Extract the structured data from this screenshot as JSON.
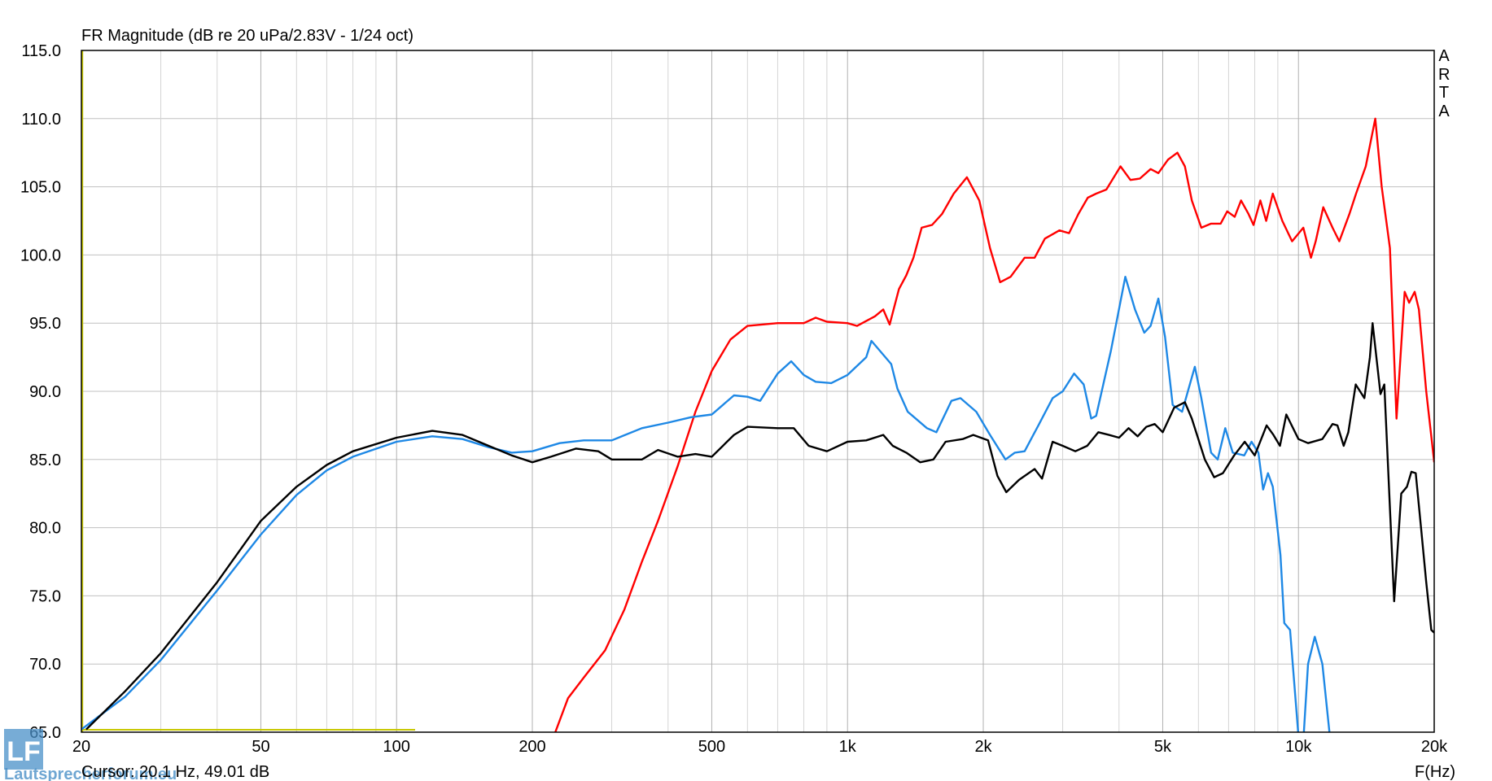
{
  "chart_data": {
    "type": "line",
    "title": "FR Magnitude (dB re 20 uPa/2.83V - 1/24 oct)",
    "brand": "ARTA",
    "xlabel": "F(Hz)",
    "cursor": {
      "label": "Cursor: 20.1 Hz, 49.01 dB",
      "x": 20.1
    },
    "watermark": {
      "logo": "LF",
      "text": "Lautsprecherforum.eu"
    },
    "xscale": "log",
    "grid": true,
    "xlim": [
      20,
      20000
    ],
    "ylim": [
      65,
      115
    ],
    "xticks": [
      20,
      50,
      100,
      200,
      500,
      {
        "value": 1000,
        "label": "1k"
      },
      {
        "value": 2000,
        "label": "2k"
      },
      {
        "value": 5000,
        "label": "5k"
      },
      {
        "value": 10000,
        "label": "10k"
      },
      {
        "value": 20000,
        "label": "20k"
      }
    ],
    "xminorticks": [
      30,
      40,
      60,
      70,
      80,
      90,
      300,
      400,
      600,
      700,
      800,
      900,
      3000,
      4000,
      6000,
      7000,
      8000,
      9000
    ],
    "yticks": [
      {
        "value": 65,
        "label": "65.0"
      },
      {
        "value": 70,
        "label": "70.0"
      },
      {
        "value": 75,
        "label": "75.0"
      },
      {
        "value": 80,
        "label": "80.0"
      },
      {
        "value": 85,
        "label": "85.0"
      },
      {
        "value": 90,
        "label": "90.0"
      },
      {
        "value": 95,
        "label": "95.0"
      },
      {
        "value": 100,
        "label": "100.0"
      },
      {
        "value": 105,
        "label": "105.0"
      },
      {
        "value": 110,
        "label": "110.0"
      },
      {
        "value": 115,
        "label": "115.0"
      }
    ],
    "series": [
      {
        "color": "#ff0000",
        "x": [
          222,
          240,
          260,
          290,
          320,
          350,
          380,
          420,
          460,
          500,
          550,
          600,
          700,
          800,
          850,
          900,
          1000,
          1050,
          1150,
          1200,
          1240,
          1300,
          1350,
          1400,
          1460,
          1540,
          1620,
          1720,
          1840,
          1960,
          2070,
          2180,
          2300,
          2470,
          2600,
          2740,
          2950,
          3100,
          3250,
          3410,
          3560,
          3750,
          4030,
          4240,
          4450,
          4700,
          4890,
          5140,
          5390,
          5600,
          5800,
          6090,
          6400,
          6720,
          6950,
          7220,
          7460,
          7750,
          7950,
          8230,
          8480,
          8770,
          9210,
          9680,
          10250,
          10660,
          10920,
          11350,
          11900,
          12320,
          12970,
          13420,
          14100,
          14800,
          15300,
          15950,
          16500,
          17200,
          17600,
          18100,
          18500,
          19200,
          20000
        ],
        "values": [
          64.5,
          67.5,
          69.0,
          71.0,
          74.0,
          77.5,
          80.5,
          84.5,
          88.5,
          91.5,
          93.8,
          94.8,
          95.0,
          95.0,
          95.4,
          95.1,
          95.0,
          94.8,
          95.5,
          96.0,
          94.9,
          97.5,
          98.5,
          99.8,
          102.0,
          102.2,
          103.0,
          104.5,
          105.7,
          104.0,
          100.5,
          98.0,
          98.4,
          99.8,
          99.8,
          101.2,
          101.8,
          101.6,
          103.0,
          104.2,
          104.5,
          104.8,
          106.5,
          105.5,
          105.6,
          106.3,
          106.0,
          107.0,
          107.5,
          106.5,
          104.0,
          102.0,
          102.3,
          102.3,
          103.2,
          102.8,
          104.0,
          103.0,
          102.2,
          104.0,
          102.5,
          104.5,
          102.5,
          101.0,
          102.0,
          99.8,
          101.0,
          103.5,
          102.0,
          101.0,
          103.0,
          104.5,
          106.5,
          110.0,
          105.0,
          100.5,
          88.0,
          97.3,
          96.5,
          97.3,
          96.0,
          90.0,
          84.8
        ]
      },
      {
        "color": "#1e88e5",
        "x": [
          20,
          25,
          30,
          40,
          50,
          60,
          70,
          80,
          100,
          120,
          140,
          160,
          180,
          200,
          230,
          260,
          300,
          350,
          400,
          450,
          500,
          560,
          600,
          640,
          700,
          750,
          800,
          850,
          920,
          1000,
          1100,
          1130,
          1250,
          1290,
          1360,
          1500,
          1574,
          1700,
          1780,
          1930,
          2070,
          2240,
          2350,
          2470,
          2650,
          2850,
          3000,
          3180,
          3340,
          3470,
          3560,
          3840,
          4130,
          4340,
          4550,
          4700,
          4890,
          5060,
          5260,
          5520,
          5890,
          6090,
          6400,
          6620,
          6880,
          7150,
          7580,
          7870,
          8150,
          8350,
          8560,
          8770,
          9120,
          9300,
          9580,
          10150,
          10500,
          10870,
          11300,
          11970
        ],
        "values": [
          65.2,
          67.6,
          70.3,
          75.4,
          79.5,
          82.4,
          84.2,
          85.2,
          86.3,
          86.7,
          86.5,
          85.9,
          85.5,
          85.6,
          86.2,
          86.4,
          86.4,
          87.3,
          87.7,
          88.1,
          88.3,
          89.7,
          89.6,
          89.3,
          91.3,
          92.2,
          91.2,
          90.7,
          90.6,
          91.2,
          92.5,
          93.7,
          92.0,
          90.2,
          88.5,
          87.3,
          87.0,
          89.3,
          89.5,
          88.5,
          86.8,
          85.0,
          85.5,
          85.6,
          87.5,
          89.5,
          90.0,
          91.3,
          90.5,
          88.0,
          88.2,
          93.0,
          98.4,
          96.0,
          94.3,
          94.8,
          96.8,
          94.0,
          89.0,
          88.5,
          91.8,
          89.5,
          85.5,
          85.0,
          87.3,
          85.5,
          85.3,
          86.3,
          85.5,
          82.8,
          84.0,
          83.0,
          78.0,
          73.0,
          72.5,
          62.0,
          70.0,
          72.0,
          70.0,
          62.0
        ]
      },
      {
        "color": "#000000",
        "x": [
          20.5,
          25,
          30,
          40,
          50,
          60,
          70,
          80,
          100,
          120,
          140,
          160,
          180,
          200,
          220,
          250,
          280,
          300,
          350,
          380,
          420,
          460,
          500,
          560,
          600,
          700,
          760,
          820,
          900,
          1000,
          1100,
          1200,
          1260,
          1350,
          1450,
          1550,
          1650,
          1800,
          1900,
          2050,
          2150,
          2250,
          2400,
          2600,
          2700,
          2850,
          3000,
          3200,
          3400,
          3600,
          3800,
          4000,
          4200,
          4400,
          4600,
          4800,
          5000,
          5300,
          5600,
          5800,
          6200,
          6500,
          6800,
          7200,
          7600,
          8000,
          8500,
          8800,
          9100,
          9400,
          10000,
          10500,
          11300,
          11900,
          12200,
          12600,
          12900,
          13400,
          14000,
          14400,
          14600,
          15200,
          15500,
          16300,
          16900,
          17400,
          17800,
          18200,
          18700,
          19200,
          19700,
          20000
        ],
        "values": [
          65.2,
          68.0,
          70.8,
          76.0,
          80.5,
          83.0,
          84.6,
          85.6,
          86.6,
          87.1,
          86.8,
          86.0,
          85.3,
          84.8,
          85.2,
          85.8,
          85.6,
          85.0,
          85.0,
          85.7,
          85.2,
          85.4,
          85.2,
          86.8,
          87.4,
          87.3,
          87.3,
          86.0,
          85.6,
          86.3,
          86.4,
          86.8,
          86.0,
          85.5,
          84.8,
          85.0,
          86.3,
          86.5,
          86.8,
          86.4,
          83.8,
          82.6,
          83.5,
          84.3,
          83.6,
          86.3,
          86.0,
          85.6,
          86.0,
          87.0,
          86.8,
          86.6,
          87.3,
          86.7,
          87.4,
          87.6,
          87.0,
          88.8,
          89.2,
          88.0,
          85.0,
          83.7,
          84.0,
          85.3,
          86.3,
          85.3,
          87.5,
          86.8,
          86.0,
          88.3,
          86.5,
          86.2,
          86.5,
          87.6,
          87.5,
          86.0,
          87.0,
          90.5,
          89.5,
          92.5,
          95.0,
          89.8,
          90.5,
          74.6,
          82.5,
          83.0,
          84.1,
          84.0,
          80.0,
          76.0,
          72.5,
          72.3
        ]
      }
    ]
  }
}
